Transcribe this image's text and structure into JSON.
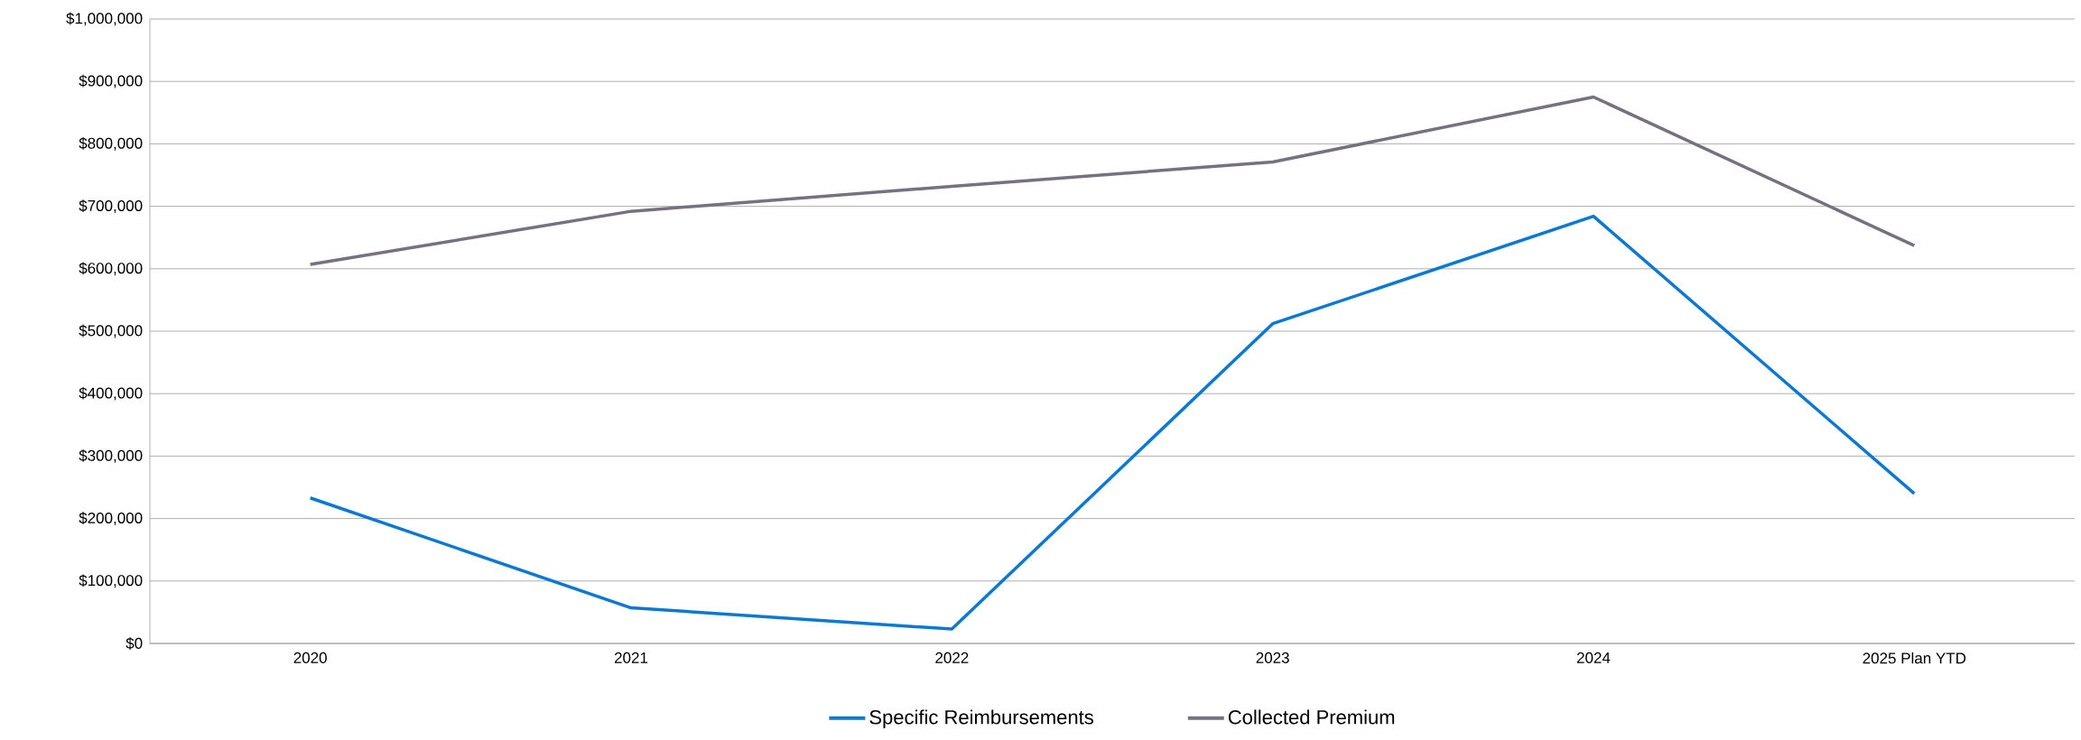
{
  "chart_data": {
    "type": "line",
    "categories": [
      "2020",
      "2021",
      "2022",
      "2023",
      "2024",
      "2025 Plan YTD"
    ],
    "series": [
      {
        "name": "Specific Reimbursements",
        "color": "#0b78d4",
        "values": [
          233000,
          57000,
          23000,
          512000,
          684000,
          240000
        ]
      },
      {
        "name": "Collected Premium",
        "color": "#76707f",
        "values": [
          607000,
          692000,
          732000,
          771000,
          875000,
          637000
        ]
      }
    ],
    "ylim": [
      0,
      1000000
    ],
    "yticks": [
      {
        "value": 0,
        "label": "$0"
      },
      {
        "value": 100000,
        "label": "$100,000"
      },
      {
        "value": 200000,
        "label": "$200,000"
      },
      {
        "value": 300000,
        "label": "$300,000"
      },
      {
        "value": 400000,
        "label": "$400,000"
      },
      {
        "value": 500000,
        "label": "$500,000"
      },
      {
        "value": 600000,
        "label": "$600,000"
      },
      {
        "value": 700000,
        "label": "$700,000"
      },
      {
        "value": 800000,
        "label": "$800,000"
      },
      {
        "value": 900000,
        "label": "$900,000"
      },
      {
        "value": 1000000,
        "label": "$1,000,000"
      }
    ],
    "grid": "y",
    "legend": "bottom",
    "marker": "none",
    "line_style": "solid"
  }
}
